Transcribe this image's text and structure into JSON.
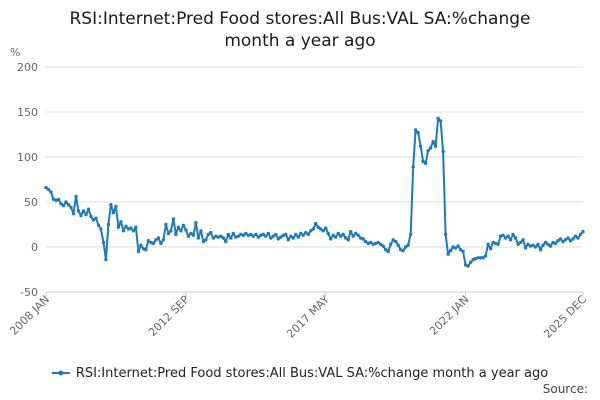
{
  "chart_data": {
    "type": "line",
    "title_line1": "RSI:Internet:Pred Food stores:All Bus:VAL SA:%change",
    "title_line2": "month a year ago",
    "ylabel": "%",
    "ylim": [
      -50,
      200
    ],
    "yticks": [
      -50,
      0,
      50,
      100,
      150,
      200
    ],
    "xlim": [
      2008.0,
      2025.917
    ],
    "xticks": [
      {
        "label": "2008 JAN",
        "x": 2008.0
      },
      {
        "label": "2012 SEP",
        "x": 2012.667
      },
      {
        "label": "2017 MAY",
        "x": 2017.333
      },
      {
        "label": "2022 JAN",
        "x": 2022.0
      },
      {
        "label": "2025 DEC",
        "x": 2025.917
      }
    ],
    "grid": true,
    "legend_position": "bottom",
    "source_label": "Source:",
    "colors": {
      "series": "#1f7ab8",
      "grid": "#dddddd",
      "axis": "#cccccc"
    },
    "series": [
      {
        "name": "RSI:Internet:Pred Food stores:All Bus:VAL SA:%change month a year ago",
        "points": [
          [
            2008.0,
            66
          ],
          [
            2008.083,
            64
          ],
          [
            2008.167,
            61
          ],
          [
            2008.25,
            53
          ],
          [
            2008.333,
            52
          ],
          [
            2008.417,
            53
          ],
          [
            2008.5,
            48
          ],
          [
            2008.583,
            46
          ],
          [
            2008.667,
            50
          ],
          [
            2008.75,
            47
          ],
          [
            2008.833,
            44
          ],
          [
            2008.917,
            37
          ],
          [
            2009.0,
            56
          ],
          [
            2009.083,
            40
          ],
          [
            2009.167,
            35
          ],
          [
            2009.25,
            40
          ],
          [
            2009.333,
            36
          ],
          [
            2009.417,
            42
          ],
          [
            2009.5,
            34
          ],
          [
            2009.583,
            30
          ],
          [
            2009.667,
            32
          ],
          [
            2009.75,
            24
          ],
          [
            2009.833,
            20
          ],
          [
            2009.917,
            5
          ],
          [
            2010.0,
            -14
          ],
          [
            2010.083,
            25
          ],
          [
            2010.167,
            47
          ],
          [
            2010.25,
            38
          ],
          [
            2010.333,
            45
          ],
          [
            2010.417,
            22
          ],
          [
            2010.5,
            28
          ],
          [
            2010.583,
            18
          ],
          [
            2010.667,
            23
          ],
          [
            2010.75,
            20
          ],
          [
            2010.833,
            21
          ],
          [
            2010.917,
            18
          ],
          [
            2011.0,
            22
          ],
          [
            2011.083,
            -5
          ],
          [
            2011.167,
            2
          ],
          [
            2011.25,
            -2
          ],
          [
            2011.333,
            -3
          ],
          [
            2011.417,
            7
          ],
          [
            2011.5,
            5
          ],
          [
            2011.583,
            4
          ],
          [
            2011.667,
            8
          ],
          [
            2011.75,
            10
          ],
          [
            2011.833,
            4
          ],
          [
            2011.917,
            8
          ],
          [
            2012.0,
            25
          ],
          [
            2012.083,
            15
          ],
          [
            2012.167,
            18
          ],
          [
            2012.25,
            31
          ],
          [
            2012.333,
            14
          ],
          [
            2012.417,
            22
          ],
          [
            2012.5,
            18
          ],
          [
            2012.583,
            24
          ],
          [
            2012.667,
            19
          ],
          [
            2012.75,
            12
          ],
          [
            2012.833,
            15
          ],
          [
            2012.917,
            13
          ],
          [
            2013.0,
            27
          ],
          [
            2013.083,
            10
          ],
          [
            2013.167,
            18
          ],
          [
            2013.25,
            6
          ],
          [
            2013.333,
            8
          ],
          [
            2013.417,
            14
          ],
          [
            2013.5,
            16
          ],
          [
            2013.583,
            10
          ],
          [
            2013.667,
            12
          ],
          [
            2013.75,
            11
          ],
          [
            2013.833,
            12
          ],
          [
            2013.917,
            10
          ],
          [
            2014.0,
            6
          ],
          [
            2014.083,
            14
          ],
          [
            2014.167,
            10
          ],
          [
            2014.25,
            15
          ],
          [
            2014.333,
            11
          ],
          [
            2014.417,
            12
          ],
          [
            2014.5,
            14
          ],
          [
            2014.583,
            13
          ],
          [
            2014.667,
            15
          ],
          [
            2014.75,
            13
          ],
          [
            2014.833,
            14
          ],
          [
            2014.917,
            12
          ],
          [
            2015.0,
            14
          ],
          [
            2015.083,
            11
          ],
          [
            2015.167,
            13
          ],
          [
            2015.25,
            14
          ],
          [
            2015.333,
            12
          ],
          [
            2015.417,
            15
          ],
          [
            2015.5,
            10
          ],
          [
            2015.583,
            12
          ],
          [
            2015.667,
            14
          ],
          [
            2015.75,
            9
          ],
          [
            2015.833,
            11
          ],
          [
            2015.917,
            13
          ],
          [
            2016.0,
            14
          ],
          [
            2016.083,
            8
          ],
          [
            2016.167,
            12
          ],
          [
            2016.25,
            10
          ],
          [
            2016.333,
            14
          ],
          [
            2016.417,
            11
          ],
          [
            2016.5,
            15
          ],
          [
            2016.583,
            13
          ],
          [
            2016.667,
            16
          ],
          [
            2016.75,
            14
          ],
          [
            2016.833,
            18
          ],
          [
            2016.917,
            20
          ],
          [
            2017.0,
            26
          ],
          [
            2017.083,
            22
          ],
          [
            2017.167,
            20
          ],
          [
            2017.25,
            18
          ],
          [
            2017.333,
            21
          ],
          [
            2017.417,
            15
          ],
          [
            2017.5,
            9
          ],
          [
            2017.583,
            13
          ],
          [
            2017.667,
            11
          ],
          [
            2017.75,
            15
          ],
          [
            2017.833,
            12
          ],
          [
            2017.917,
            14
          ],
          [
            2018.0,
            10
          ],
          [
            2018.083,
            8
          ],
          [
            2018.167,
            17
          ],
          [
            2018.25,
            12
          ],
          [
            2018.333,
            15
          ],
          [
            2018.417,
            13
          ],
          [
            2018.5,
            10
          ],
          [
            2018.583,
            9
          ],
          [
            2018.667,
            6
          ],
          [
            2018.75,
            4
          ],
          [
            2018.833,
            5
          ],
          [
            2018.917,
            3
          ],
          [
            2019.0,
            4
          ],
          [
            2019.083,
            5
          ],
          [
            2019.167,
            3
          ],
          [
            2019.25,
            1
          ],
          [
            2019.333,
            -3
          ],
          [
            2019.417,
            -5
          ],
          [
            2019.5,
            3
          ],
          [
            2019.583,
            8
          ],
          [
            2019.667,
            6
          ],
          [
            2019.75,
            2
          ],
          [
            2019.833,
            -3
          ],
          [
            2019.917,
            -4
          ],
          [
            2020.0,
            0
          ],
          [
            2020.083,
            2
          ],
          [
            2020.167,
            14
          ],
          [
            2020.25,
            89
          ],
          [
            2020.333,
            130
          ],
          [
            2020.417,
            127
          ],
          [
            2020.5,
            112
          ],
          [
            2020.583,
            95
          ],
          [
            2020.667,
            93
          ],
          [
            2020.75,
            107
          ],
          [
            2020.833,
            110
          ],
          [
            2020.917,
            117
          ],
          [
            2021.0,
            112
          ],
          [
            2021.083,
            143
          ],
          [
            2021.167,
            140
          ],
          [
            2021.25,
            106
          ],
          [
            2021.333,
            14
          ],
          [
            2021.417,
            -8
          ],
          [
            2021.5,
            -4
          ],
          [
            2021.583,
            0
          ],
          [
            2021.667,
            -1
          ],
          [
            2021.75,
            1
          ],
          [
            2021.833,
            -3
          ],
          [
            2021.917,
            -5
          ],
          [
            2022.0,
            -20
          ],
          [
            2022.083,
            -21
          ],
          [
            2022.167,
            -17
          ],
          [
            2022.25,
            -14
          ],
          [
            2022.333,
            -13
          ],
          [
            2022.417,
            -12
          ],
          [
            2022.5,
            -12
          ],
          [
            2022.583,
            -12
          ],
          [
            2022.667,
            -10
          ],
          [
            2022.75,
            3
          ],
          [
            2022.833,
            -2
          ],
          [
            2022.917,
            5
          ],
          [
            2023.0,
            4
          ],
          [
            2023.083,
            3
          ],
          [
            2023.167,
            12
          ],
          [
            2023.25,
            13
          ],
          [
            2023.333,
            10
          ],
          [
            2023.417,
            12
          ],
          [
            2023.5,
            8
          ],
          [
            2023.583,
            14
          ],
          [
            2023.667,
            10
          ],
          [
            2023.75,
            3
          ],
          [
            2023.833,
            5
          ],
          [
            2023.917,
            8
          ],
          [
            2024.0,
            -1
          ],
          [
            2024.083,
            3
          ],
          [
            2024.167,
            1
          ],
          [
            2024.25,
            2
          ],
          [
            2024.333,
            0
          ],
          [
            2024.417,
            3
          ],
          [
            2024.5,
            -3
          ],
          [
            2024.583,
            2
          ],
          [
            2024.667,
            5
          ],
          [
            2024.75,
            3
          ],
          [
            2024.833,
            1
          ],
          [
            2024.917,
            5
          ],
          [
            2025.0,
            4
          ],
          [
            2025.083,
            7
          ],
          [
            2025.167,
            9
          ],
          [
            2025.25,
            6
          ],
          [
            2025.333,
            8
          ],
          [
            2025.417,
            10
          ],
          [
            2025.5,
            7
          ],
          [
            2025.583,
            9
          ],
          [
            2025.667,
            12
          ],
          [
            2025.75,
            10
          ],
          [
            2025.833,
            14
          ],
          [
            2025.917,
            17
          ]
        ]
      }
    ]
  }
}
